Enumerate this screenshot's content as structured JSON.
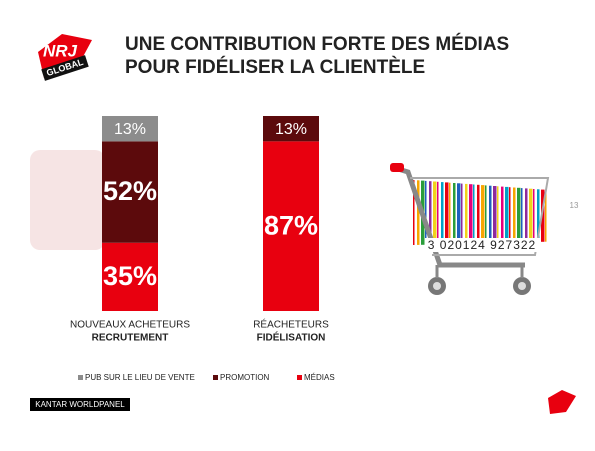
{
  "chart_data": {
    "type": "stacked-bar",
    "title": "UNE CONTRIBUTION FORTE DES MÉDIAS",
    "subtitle": "POUR FIDÉLISER LA CLIENTÈLE",
    "categories": [
      "NOUVEAUX ACHETEURS",
      "RÉACHETEURS"
    ],
    "category_sublabels": [
      "RECRUTEMENT",
      "FIDÉLISATION"
    ],
    "ylim": [
      0,
      100
    ],
    "series": [
      {
        "name": "MÉDIAS",
        "color": "#e8000f",
        "values": [
          35,
          87
        ],
        "value_labels": [
          "35%",
          "87%"
        ]
      },
      {
        "name": "PROMOTION",
        "color": "#5c0a0c",
        "values": [
          52,
          13
        ],
        "value_labels": [
          "52%",
          "13%"
        ]
      },
      {
        "name": "PUB SUR LE LIEU DE VENTE",
        "color": "#8c8c8c",
        "values": [
          13,
          null
        ],
        "value_labels": [
          "13%",
          null
        ]
      }
    ],
    "legend_order": [
      2,
      1,
      0
    ]
  },
  "slide": {
    "logo_top": "NRJ",
    "logo_bottom": "GLOBAL",
    "page_number": "13",
    "footer": "KANTAR WORLDPANEL",
    "barcode": "3 020124 927322"
  }
}
